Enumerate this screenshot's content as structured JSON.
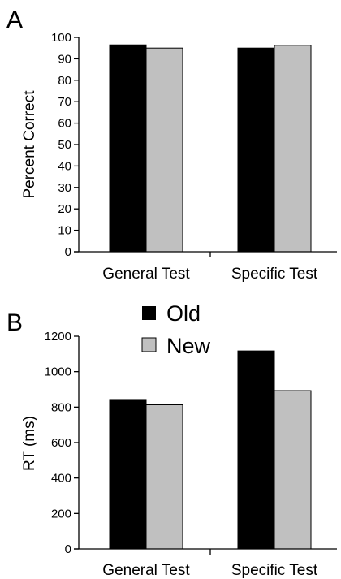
{
  "colors": {
    "old": "#000000",
    "new": "#c0c0c0",
    "axis": "#000000"
  },
  "chart_data": [
    {
      "type": "bar",
      "panel_label": "A",
      "title": "",
      "xlabel": "",
      "ylabel": "Percent Correct",
      "categories": [
        "General Test",
        "Specific Test"
      ],
      "series": [
        {
          "name": "Old",
          "values": [
            96.5,
            95
          ]
        },
        {
          "name": "New",
          "values": [
            95,
            96.3
          ]
        }
      ],
      "ylim": [
        0,
        100
      ],
      "yticks": [
        "0",
        "10",
        "20",
        "30",
        "40",
        "50",
        "60",
        "70",
        "80",
        "90",
        "100"
      ],
      "grid": false,
      "legend": null
    },
    {
      "type": "bar",
      "panel_label": "B",
      "title": "",
      "xlabel": "",
      "ylabel": "RT  (ms)",
      "categories": [
        "General Test",
        "Specific Test"
      ],
      "series": [
        {
          "name": "Old",
          "values": [
            843,
            1117
          ]
        },
        {
          "name": "New",
          "values": [
            813,
            893
          ]
        }
      ],
      "ylim": [
        0,
        1200
      ],
      "yticks": [
        "0",
        "200",
        "400",
        "600",
        "800",
        "1000",
        "1200"
      ],
      "grid": false,
      "legend": {
        "position": "top-left",
        "entries": [
          "Old",
          "New"
        ]
      }
    }
  ]
}
